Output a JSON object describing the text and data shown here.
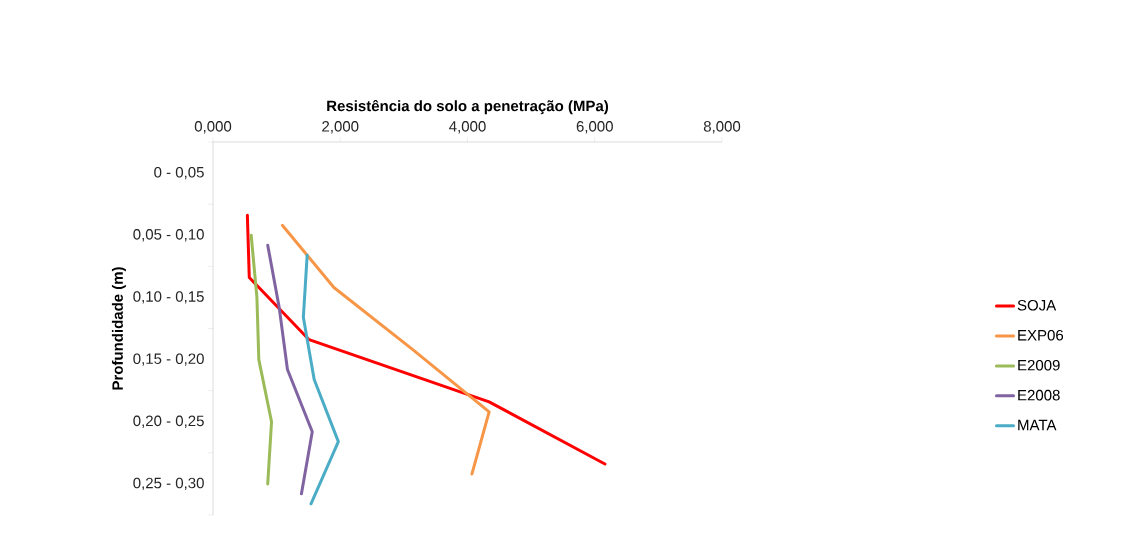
{
  "chart_data": {
    "type": "line",
    "orientation": "horizontal",
    "xlabel": "Resistência do solo a penetração (MPa)",
    "ylabel": "Profundidade (m)",
    "categories": [
      "0 - 0,05",
      "0,05 - 0,10",
      "0,10 - 0,15",
      "0,15 - 0,20",
      "0,20 - 0,25",
      "0,25 - 0,30"
    ],
    "xlim": [
      0,
      8
    ],
    "xticks": [
      {
        "value": 0,
        "label": "0,000"
      },
      {
        "value": 2,
        "label": "2,000"
      },
      {
        "value": 4,
        "label": "4,000"
      },
      {
        "value": 6,
        "label": "6,000"
      },
      {
        "value": 8,
        "label": "8,000"
      }
    ],
    "series": [
      {
        "name": "SOJA",
        "color": "#ff0000",
        "values": [
          null,
          0.54,
          0.57,
          1.51,
          4.34,
          6.16
        ]
      },
      {
        "name": "EXP06",
        "color": "#f79646",
        "values": [
          null,
          1.09,
          1.9,
          3.14,
          4.34,
          4.07
        ]
      },
      {
        "name": "E2009",
        "color": "#9bbb59",
        "values": [
          null,
          0.6,
          0.69,
          0.72,
          0.92,
          0.86
        ]
      },
      {
        "name": "E2008",
        "color": "#8064a2",
        "values": [
          null,
          0.86,
          1.04,
          1.17,
          1.56,
          1.39
        ]
      },
      {
        "name": "MATA",
        "color": "#4bacc6",
        "values": [
          null,
          1.48,
          1.42,
          1.59,
          1.97,
          1.54
        ]
      }
    ],
    "legend": "right",
    "grid": false,
    "marker": "none",
    "line_style": "solid"
  }
}
